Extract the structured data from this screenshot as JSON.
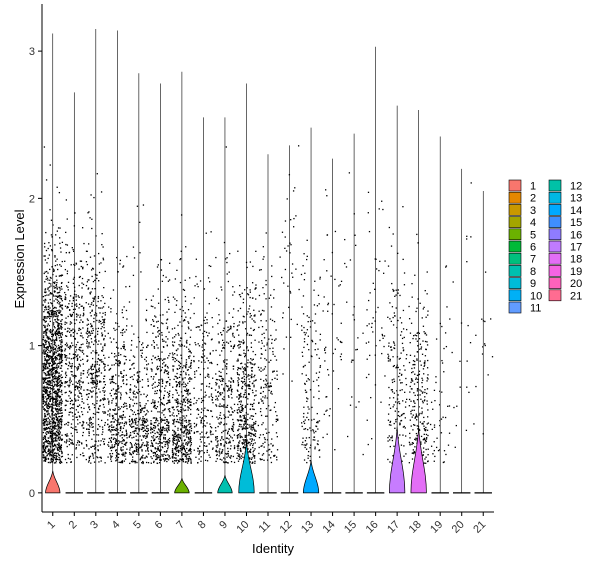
{
  "chart_data": {
    "type": "violin",
    "xlabel": "Identity",
    "ylabel": "Expression Level",
    "ylim": [
      -0.13,
      3.32
    ],
    "yticks": [
      0,
      1,
      2,
      3
    ],
    "categories": [
      "1",
      "2",
      "3",
      "4",
      "5",
      "6",
      "7",
      "8",
      "9",
      "10",
      "11",
      "12",
      "13",
      "14",
      "15",
      "16",
      "17",
      "18",
      "19",
      "20",
      "21"
    ],
    "colors": [
      "#F8766D",
      "#E58700",
      "#C99800",
      "#A3A500",
      "#6BB100",
      "#00BA38",
      "#00BF7D",
      "#00C0AF",
      "#00BCD8",
      "#00B0F6",
      "#619CFF",
      "#B983FF",
      "#E76BF3",
      "#FD61D1",
      "#FF67A4",
      "#F8766D",
      "#E7861B",
      "#C99800",
      "#A3A500",
      "#00BF7D",
      "#FF67A4"
    ],
    "legend_colors": [
      "#F8766D",
      "#E58700",
      "#C99800",
      "#A3A500",
      "#6BB100",
      "#00BA38",
      "#00BF7D",
      "#00C0AF",
      "#00BCD8",
      "#00B0F6",
      "#619CFF",
      "#00C1A7",
      "#00B8E5",
      "#00A9FF",
      "#3F8EFF",
      "#8F7CFF",
      "#C07BFF",
      "#E36EF6",
      "#F564E3",
      "#FF62BC",
      "#FF6C91"
    ],
    "violin_colors": [
      "#F8766D",
      "#E58700",
      "#C99800",
      "#A3A500",
      "#6BB100",
      "#00BA38",
      "#6BB100",
      "#00BF7D",
      "#00C0AF",
      "#00BCD8",
      "#00B0F6",
      "#00C1A7",
      "#00A9FF",
      "#00A9FF",
      "#3F8EFF",
      "#8F7CFF",
      "#C77CFF",
      "#E36EF6",
      "#F564E3",
      "#FF62BC",
      "#FF6C91"
    ],
    "max_expression": [
      3.12,
      2.72,
      3.15,
      3.14,
      2.85,
      2.78,
      2.86,
      2.55,
      2.55,
      2.78,
      2.3,
      2.36,
      2.48,
      2.27,
      2.44,
      3.03,
      2.63,
      2.6,
      2.42,
      2.2,
      2.05
    ],
    "violin_peak_width": [
      0.75,
      0.05,
      0.05,
      0.05,
      0.05,
      0.05,
      0.75,
      0.05,
      0.75,
      0.8,
      0.05,
      0.05,
      0.8,
      0.05,
      0.05,
      0.05,
      0.8,
      0.8,
      0.05,
      0.05,
      0.05
    ],
    "violin_bulge_top": [
      0.15,
      0.0,
      0.0,
      0.0,
      0.0,
      0.0,
      0.1,
      0.0,
      0.12,
      0.35,
      0.0,
      0.0,
      0.22,
      0.0,
      0.0,
      0.0,
      0.45,
      0.45,
      0.0,
      0.0,
      0.0
    ],
    "point_counts": [
      1400,
      420,
      420,
      360,
      330,
      420,
      520,
      200,
      300,
      460,
      180,
      40,
      150,
      50,
      25,
      50,
      180,
      260,
      50,
      20,
      15
    ],
    "point_center": [
      0.75,
      0.85,
      0.85,
      0.5,
      0.45,
      0.55,
      0.5,
      0.6,
      0.55,
      0.6,
      0.7,
      1.5,
      0.7,
      1.0,
      1.0,
      1.2,
      0.75,
      0.6,
      0.5,
      1.0,
      0.8
    ],
    "legend": {
      "position": "right",
      "columns": [
        [
          "1",
          "2",
          "3",
          "4",
          "5",
          "6",
          "7",
          "8",
          "9",
          "10",
          "11"
        ],
        [
          "12",
          "13",
          "14",
          "15",
          "16",
          "17",
          "18",
          "19",
          "20",
          "21"
        ]
      ]
    }
  }
}
